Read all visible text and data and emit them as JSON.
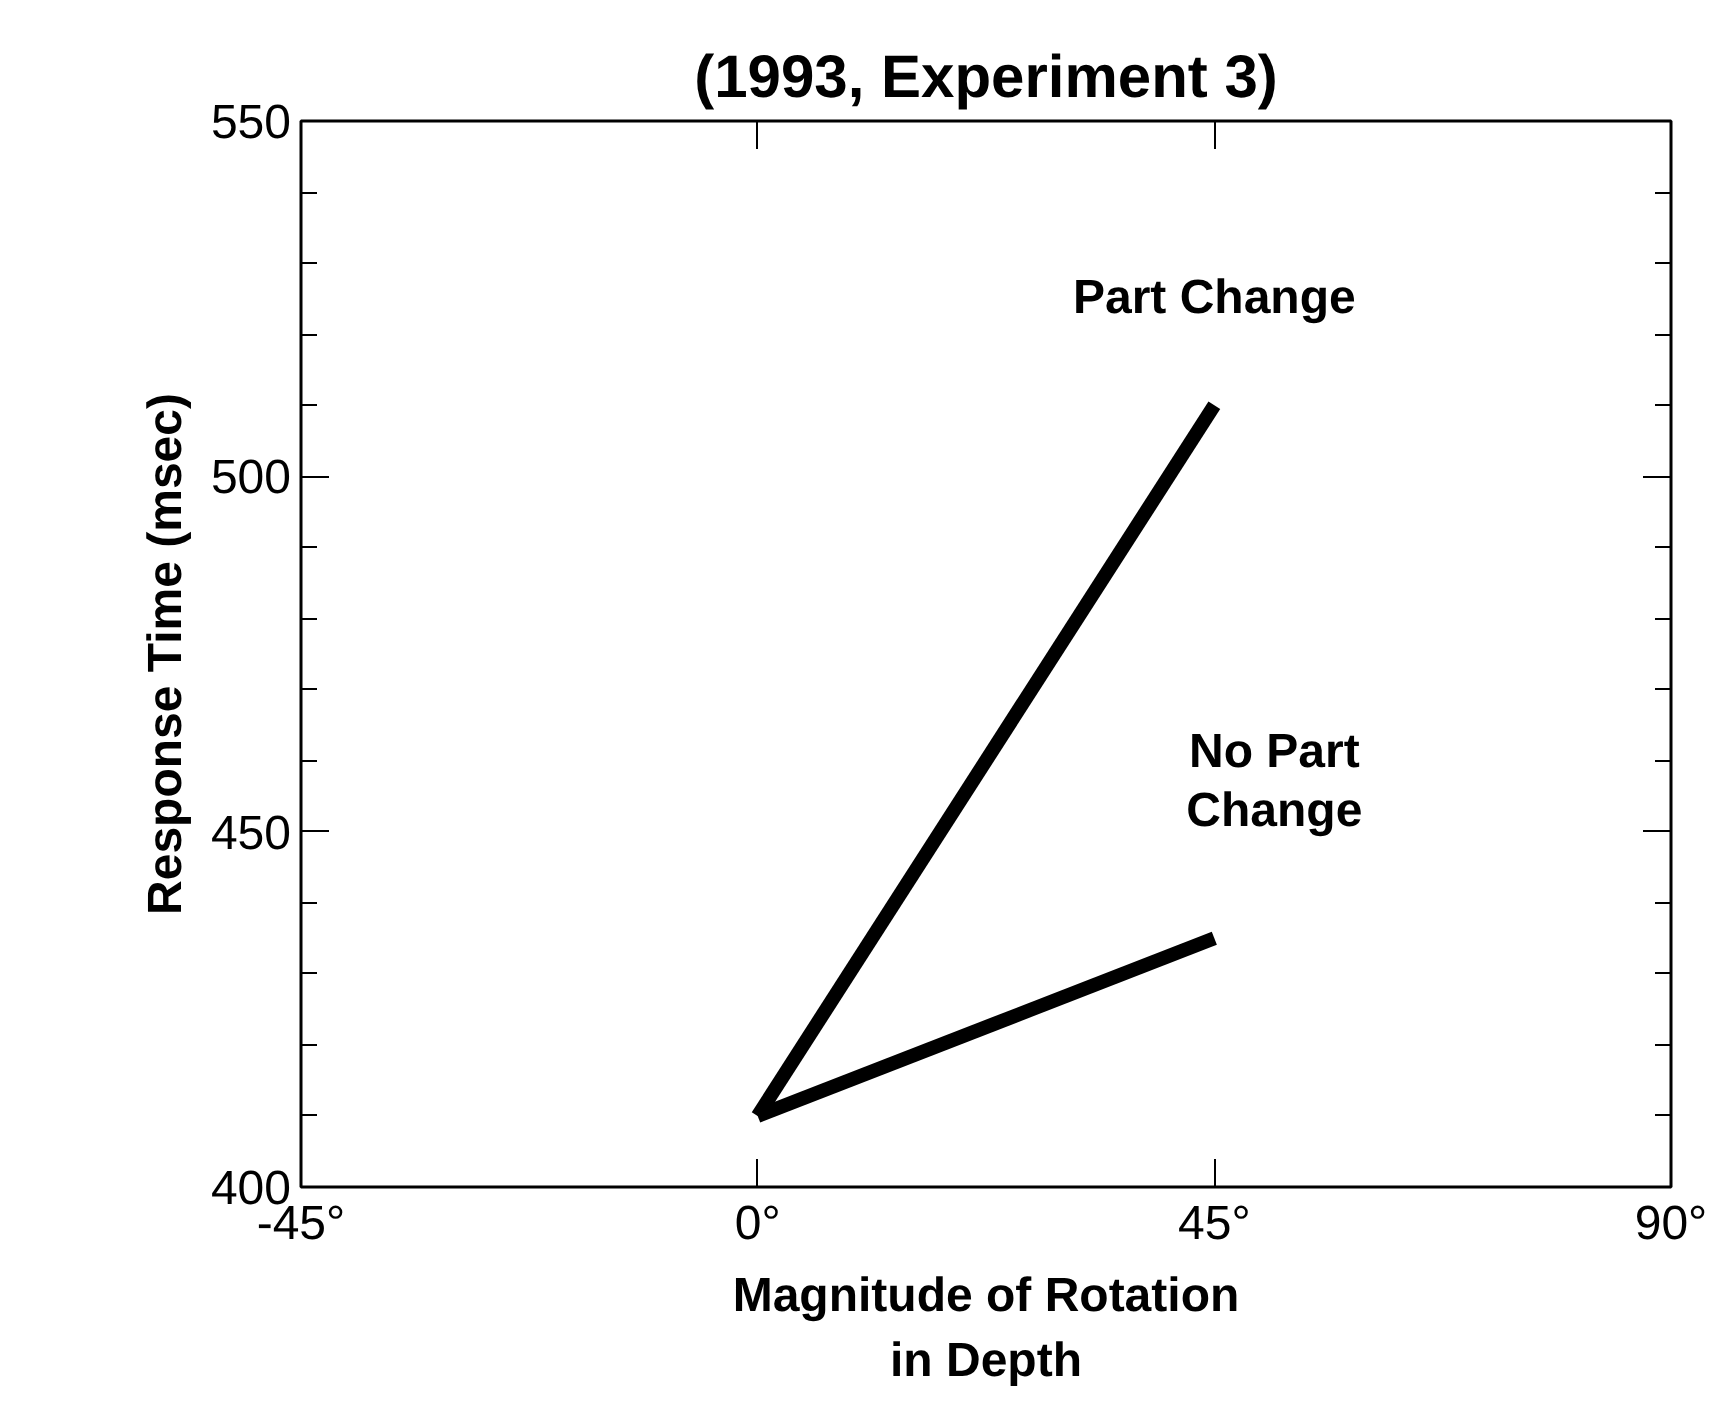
{
  "chart_data": {
    "type": "line",
    "title": "(1993, Experiment 3)",
    "xlabel": "Magnitude of Rotation\nin Depth",
    "ylabel": "Response Time (msec)",
    "x": [
      0,
      45
    ],
    "series": [
      {
        "name": "Part Change",
        "color": "#000000",
        "values": [
          410,
          510
        ]
      },
      {
        "name": "No Part\nChange",
        "color": "#000000",
        "values": [
          410,
          435
        ]
      }
    ],
    "xlim": [
      -45,
      90
    ],
    "ylim": [
      400,
      550
    ],
    "xticks": [
      {
        "value": -45,
        "label": "-45°"
      },
      {
        "value": 0,
        "label": "0°"
      },
      {
        "value": 45,
        "label": "45°"
      },
      {
        "value": 90,
        "label": "90°"
      }
    ],
    "yticks": [
      400,
      450,
      500,
      550
    ],
    "grid": false,
    "legend": false,
    "marker": "none",
    "line_style": "solid"
  }
}
